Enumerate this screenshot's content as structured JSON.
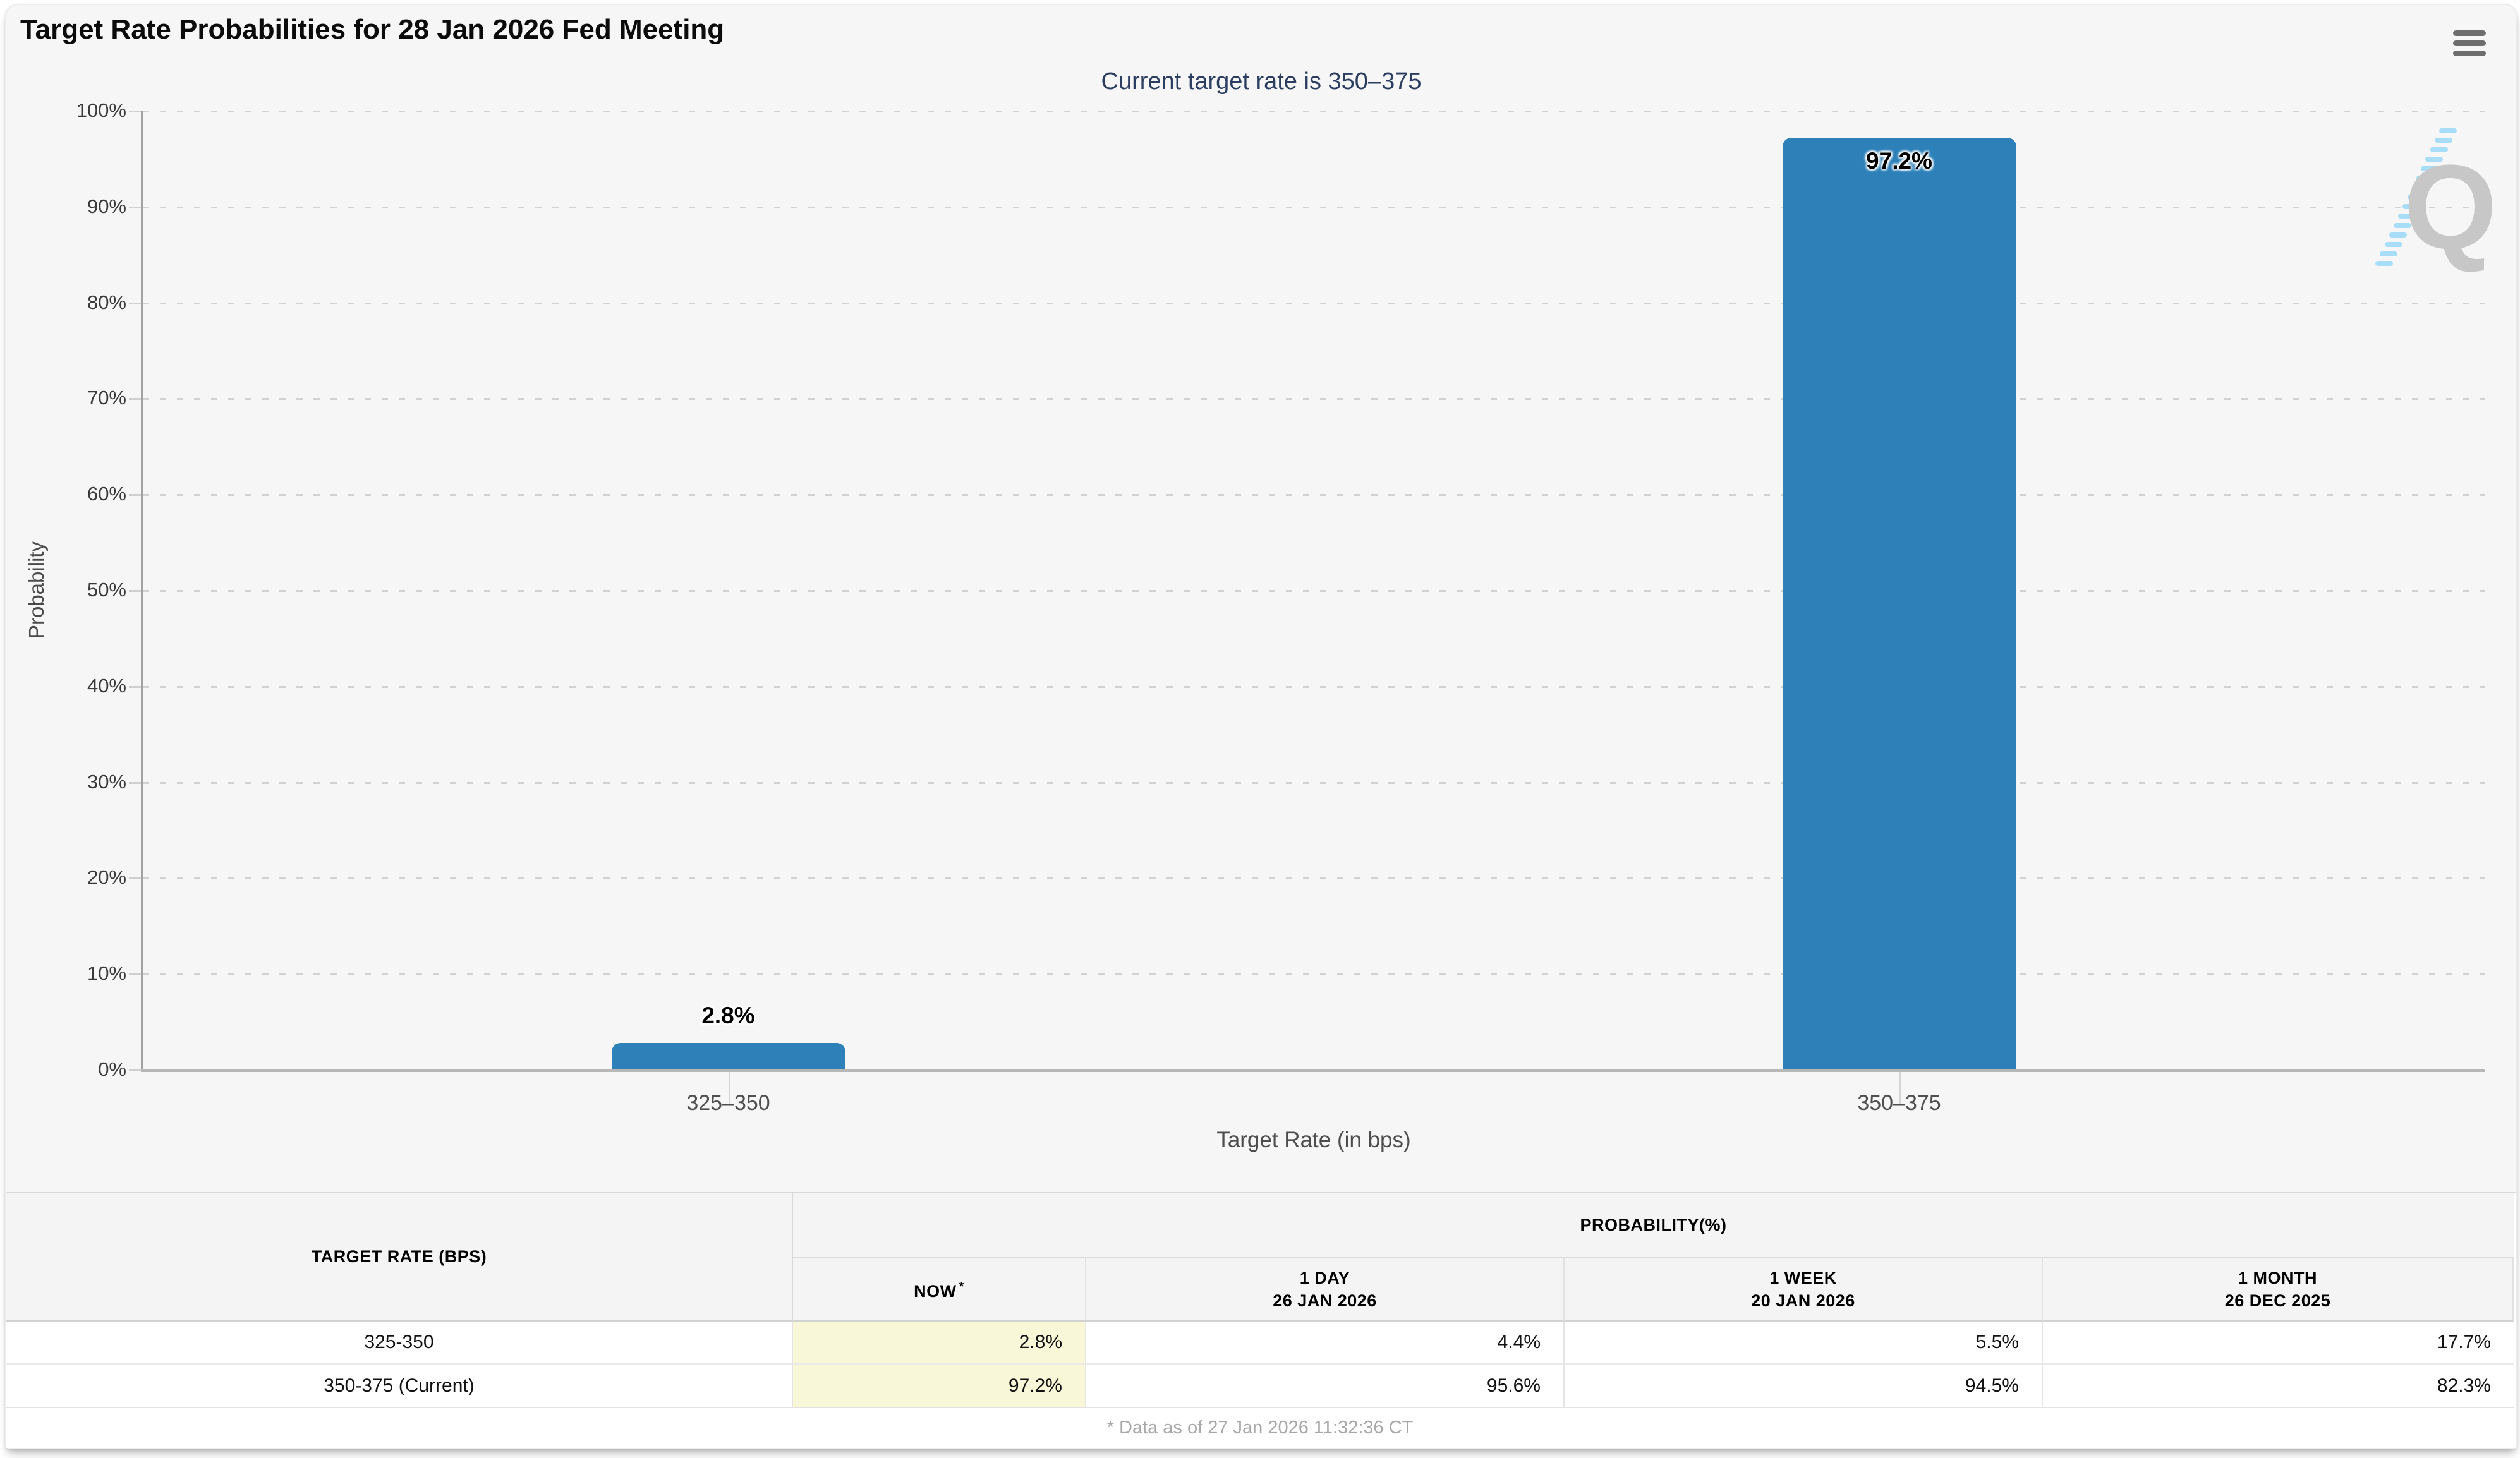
{
  "header": {
    "title": "Target Rate Probabilities for 28 Jan 2026 Fed Meeting",
    "menu_icon": "hamburger-export-menu"
  },
  "chart_data": {
    "type": "bar",
    "title": "Target Rate Probabilities for 28 Jan 2026 Fed Meeting",
    "subtitle": "Current target rate is 350–375",
    "categories": [
      "325–350",
      "350–375"
    ],
    "values": [
      2.8,
      97.2
    ],
    "value_labels": [
      "2.8%",
      "97.2%"
    ],
    "xlabel": "Target Rate (in bps)",
    "ylabel": "Probability",
    "ylim": [
      0,
      100
    ],
    "y_tick_labels": [
      "0%",
      "10%",
      "20%",
      "30%",
      "40%",
      "50%",
      "60%",
      "70%",
      "80%",
      "90%",
      "100%"
    ],
    "grid": "dotted horizontal, on",
    "legend": "none",
    "bar_color": "#2d80b8",
    "subtitle_color": "#2b3e61",
    "watermark_letter": "Q"
  },
  "table": {
    "rate_header": "TARGET RATE (BPS)",
    "group_header": "PROBABILITY(%)",
    "prob_columns": [
      {
        "label": "NOW",
        "mark": "*",
        "sub": ""
      },
      {
        "label": "1 DAY",
        "mark": "",
        "sub": "26 JAN 2026"
      },
      {
        "label": "1 WEEK",
        "mark": "",
        "sub": "20 JAN 2026"
      },
      {
        "label": "1 MONTH",
        "mark": "",
        "sub": "26 DEC 2025"
      }
    ],
    "rows": [
      {
        "rate": "325-350",
        "values": [
          "2.8%",
          "4.4%",
          "5.5%",
          "17.7%"
        ]
      },
      {
        "rate": "350-375 (Current)",
        "values": [
          "97.2%",
          "95.6%",
          "94.5%",
          "82.3%"
        ]
      }
    ],
    "now_highlight_color": "#f8f8d8",
    "footnote": "* Data as of 27 Jan 2026 11:32:36 CT"
  }
}
